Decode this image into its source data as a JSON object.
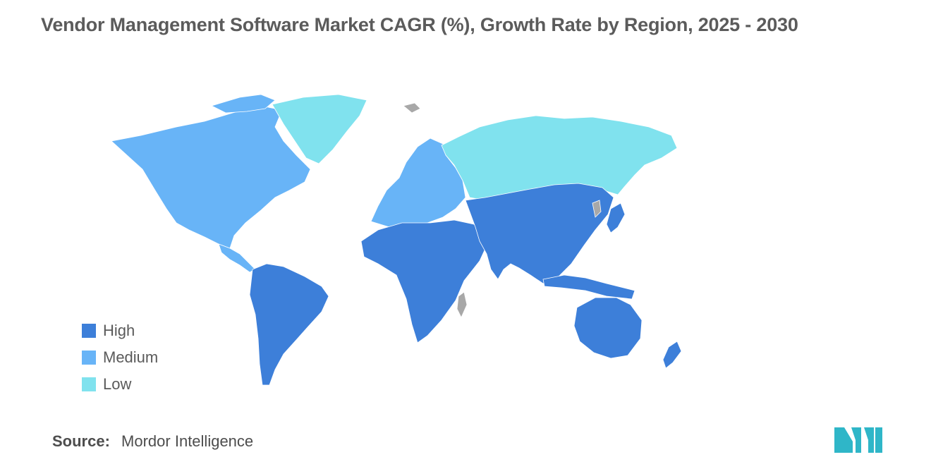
{
  "title": "Vendor Management Software Market CAGR (%), Growth Rate by Region, 2025 - 2030",
  "colors": {
    "high": "#3d7fd9",
    "medium": "#68b4f7",
    "low": "#80e2ee",
    "no_data": "#a8a8a8",
    "logo": "#2fb6c8"
  },
  "legend": [
    {
      "label": "High",
      "color": "#3d7fd9"
    },
    {
      "label": "Medium",
      "color": "#68b4f7"
    },
    {
      "label": "Low",
      "color": "#80e2ee"
    }
  ],
  "map_data": {
    "type": "choropleth",
    "regions": [
      {
        "region": "North America",
        "category": "Medium"
      },
      {
        "region": "Europe",
        "category": "Medium"
      },
      {
        "region": "Greenland",
        "category": "Low"
      },
      {
        "region": "Russia",
        "category": "Low"
      },
      {
        "region": "Latin America",
        "category": "High"
      },
      {
        "region": "Middle East and Africa",
        "category": "High"
      },
      {
        "region": "Asia",
        "category": "High"
      },
      {
        "region": "Australia and New Zealand",
        "category": "High"
      }
    ]
  },
  "source": {
    "label": "Source:",
    "value": "Mordor Intelligence"
  },
  "logo_icon": "mordor-intelligence-logo"
}
